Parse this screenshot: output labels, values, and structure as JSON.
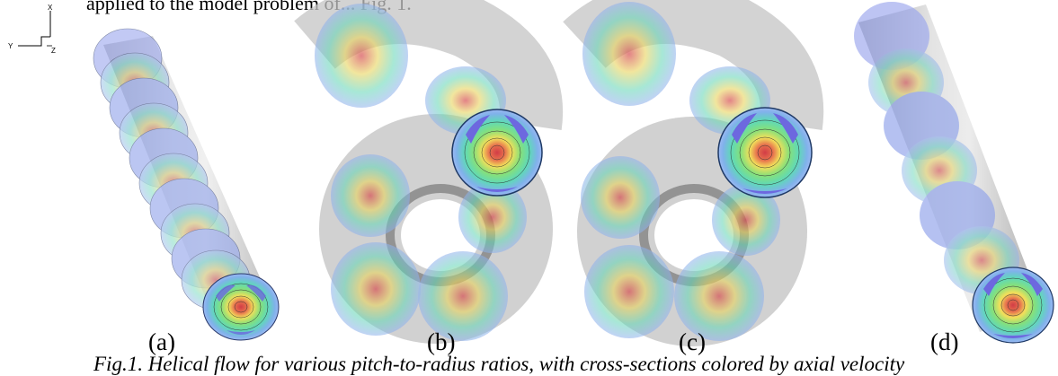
{
  "header": {
    "cut_line": "applied to the model problem of... Fig. 1."
  },
  "axes": {
    "y": "Y",
    "x": "X",
    "z": "Z"
  },
  "panels": [
    {
      "label": "(a)"
    },
    {
      "label": "(b)"
    },
    {
      "label": "(c)"
    },
    {
      "label": "(d)"
    }
  ],
  "caption": "Fig.1. Helical flow for various pitch-to-radius ratios, with cross-sections colored by axial velocity",
  "colors": {
    "core": "#d9464a",
    "mid": "#f0e35a",
    "outer": "#5fd9b8",
    "edge": "#7aa7e0",
    "vortex": "#6d68df",
    "tube": "#b5b5b5"
  }
}
